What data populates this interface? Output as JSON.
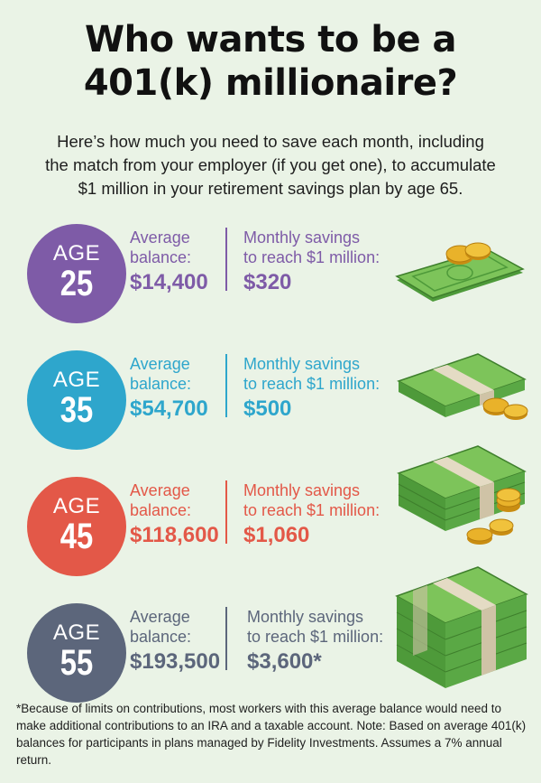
{
  "title": {
    "line1": "Who wants to be a",
    "line2": "401(k) millionaire?"
  },
  "subtitle": {
    "line1": "Here’s how much you need to save each month, including",
    "line2": "the match from your employer (if you get one), to accumulate",
    "line3": "$1 million in your retirement savings plan by age 65."
  },
  "rows": [
    {
      "age_label": "AGE",
      "age": "25",
      "color": "#7e5ba7",
      "avg_line1": "Average",
      "avg_line2": "balance:",
      "avg_value": "$14,400",
      "mon_line1": "Monthly savings",
      "mon_line2": "to reach $1 million:",
      "mon_value": "$320"
    },
    {
      "age_label": "AGE",
      "age": "35",
      "color": "#2ea6cc",
      "avg_line1": "Average",
      "avg_line2": "balance:",
      "avg_value": "$54,700",
      "mon_line1": "Monthly savings",
      "mon_line2": "to reach $1 million:",
      "mon_value": "$500"
    },
    {
      "age_label": "AGE",
      "age": "45",
      "color": "#e35848",
      "avg_line1": "Average",
      "avg_line2": "balance:",
      "avg_value": "$118,600",
      "mon_line1": "Monthly savings",
      "mon_line2": "to reach $1 million:",
      "mon_value": "$1,060"
    },
    {
      "age_label": "AGE",
      "age": "55",
      "color": "#5c667b",
      "avg_line1": "Average",
      "avg_line2": "balance:",
      "avg_value": "$193,500",
      "mon_line1": "Monthly savings",
      "mon_line2": "to reach $1 million:",
      "mon_value": "$3,600*"
    }
  ],
  "footnote": "*Because of limits on contributions, most workers with this average balance would need to make additional contributions to an IRA and a taxable account. Note: Based on average 401(k) balances for participants in plans managed by Fidelity Investments. Assumes a 7% annual return.",
  "colors": {
    "background": "#eaf3e6",
    "cash_light": "#7dc45a",
    "cash_dark": "#4e9a3a",
    "coin": "#e9b22a"
  }
}
